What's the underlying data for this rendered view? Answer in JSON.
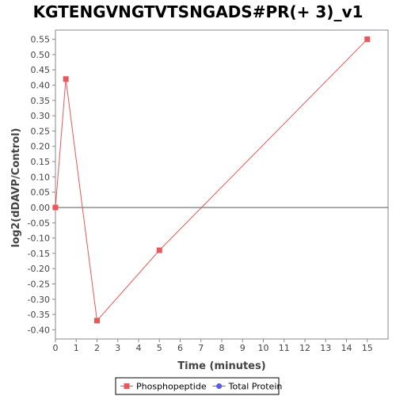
{
  "chart_data": {
    "type": "line",
    "title": "KGTENGVNGTVTSNGADS#PR(+ 3)_v1",
    "xlabel": "Time (minutes)",
    "ylabel": "log2(dDAVP/Control)",
    "xlim": [
      0,
      16
    ],
    "ylim": [
      -0.43,
      0.58
    ],
    "x_ticks": [
      0,
      1,
      2,
      3,
      4,
      5,
      6,
      7,
      8,
      9,
      10,
      11,
      12,
      13,
      14,
      15
    ],
    "y_ticks": [
      -0.4,
      -0.35,
      -0.3,
      -0.25,
      -0.2,
      -0.15,
      -0.1,
      -0.05,
      0.0,
      0.05,
      0.1,
      0.15,
      0.2,
      0.25,
      0.3,
      0.35,
      0.4,
      0.45,
      0.5,
      0.55
    ],
    "series": [
      {
        "name": "Phosphopeptide",
        "color": "#e8585a",
        "marker": "square",
        "x": [
          0,
          0.5,
          2,
          5,
          15
        ],
        "y": [
          0.0,
          0.42,
          -0.37,
          -0.14,
          0.55
        ]
      },
      {
        "name": "Total Protein",
        "color": "#5a5ae8",
        "marker": "circle",
        "x": [],
        "y": []
      }
    ],
    "grid": false,
    "legend": "bottom",
    "zero_line": true
  }
}
